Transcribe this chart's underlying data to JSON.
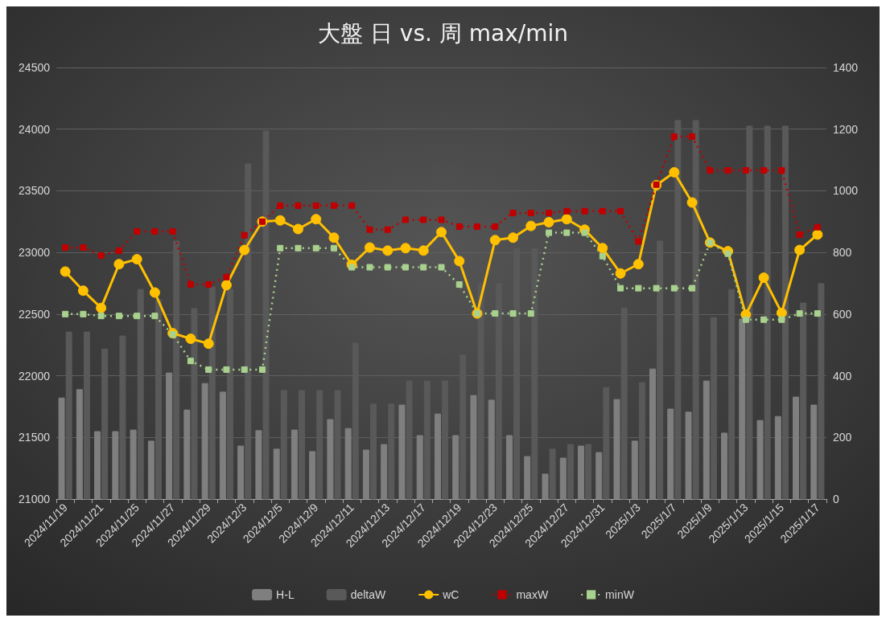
{
  "chart_data": {
    "type": "line",
    "title": "大盤 日 vs. 周 max/min",
    "categories": [
      "2024/11/19",
      null,
      "2024/11/21",
      null,
      "2024/11/25",
      null,
      "2024/11/27",
      null,
      "2024/11/29",
      null,
      "2024/12/3",
      null,
      "2024/12/5",
      null,
      "2024/12/9",
      null,
      "2024/12/11",
      null,
      "2024/12/13",
      null,
      "2024/12/17",
      null,
      "2024/12/19",
      null,
      "2024/12/23",
      null,
      "2024/12/25",
      null,
      "2024/12/27",
      null,
      "2024/12/31",
      null,
      "2025/1/3",
      null,
      "2025/1/7",
      null,
      "2025/1/9",
      null,
      "2025/1/13",
      null,
      "2025/1/15",
      null,
      "2025/1/17"
    ],
    "ylim": [
      21000,
      24500
    ],
    "yticks": [
      21000,
      21500,
      22000,
      22500,
      23000,
      23500,
      24000,
      24500
    ],
    "y2lim": [
      0,
      1400
    ],
    "y2ticks": [
      0,
      200,
      400,
      600,
      800,
      1000,
      1200,
      1400
    ],
    "grid": "y",
    "legend": "bottom",
    "series": [
      {
        "name": "H-L",
        "type": "bar",
        "axis": "y2",
        "color": "#7f7f7f",
        "values": [
          328,
          355,
          219,
          219,
          224,
          188,
          409,
          289,
          375,
          347,
          172,
          222,
          162,
          224,
          154,
          258,
          229,
          159,
          177,
          305,
          206,
          276,
          206,
          336,
          321,
          206,
          138,
          81,
          133,
          172,
          151,
          323,
          188,
          422,
          292,
          282,
          383,
          214,
          584,
          255,
          268,
          331,
          305
        ]
      },
      {
        "name": "deltaW",
        "type": "bar",
        "axis": "y2",
        "color": "#595959",
        "values": [
          542,
          542,
          487,
          529,
          680,
          646,
          837,
          618,
          688,
          680,
          1087,
          1194,
          352,
          352,
          352,
          352,
          506,
          308,
          308,
          383,
          383,
          383,
          467,
          699,
          699,
          813,
          813,
          162,
          177,
          177,
          362,
          620,
          378,
          837,
          1228,
          1228,
          589,
          680,
          1210,
          1210,
          1210,
          636,
          699
        ]
      },
      {
        "name": "wC",
        "color": "#ffc000",
        "marker": "circle",
        "line_style": "solid",
        "values": [
          22845,
          22690,
          22550,
          22905,
          22945,
          22675,
          22345,
          22300,
          22260,
          22735,
          23020,
          23250,
          23260,
          23190,
          23270,
          23120,
          22900,
          23040,
          23015,
          23035,
          23015,
          23165,
          22930,
          22505,
          23100,
          23120,
          23215,
          23245,
          23270,
          23185,
          23035,
          22830,
          22905,
          23545,
          23650,
          23405,
          23080,
          23010,
          22495,
          22795,
          22510,
          23020,
          23145
        ]
      },
      {
        "name": "maxW",
        "color": "#c00000",
        "marker": "square",
        "line_style": "dotted",
        "values": [
          23040,
          23040,
          22975,
          23015,
          23170,
          23170,
          23170,
          22740,
          22740,
          22800,
          23140,
          23250,
          23380,
          23380,
          23380,
          23380,
          23380,
          23185,
          23185,
          23265,
          23265,
          23265,
          23210,
          23210,
          23210,
          23320,
          23320,
          23320,
          23335,
          23335,
          23335,
          23335,
          23090,
          23550,
          23940,
          23940,
          23665,
          23665,
          23665,
          23665,
          23665,
          23145,
          23205
        ]
      },
      {
        "name": "minW",
        "color": "#a9d18e",
        "marker": "square",
        "line_style": "dotted",
        "values": [
          22500,
          22500,
          22485,
          22485,
          22485,
          22485,
          22335,
          22120,
          22050,
          22050,
          22050,
          22050,
          23035,
          23035,
          23035,
          23035,
          22880,
          22880,
          22880,
          22880,
          22880,
          22880,
          22740,
          22505,
          22505,
          22505,
          22505,
          23160,
          23160,
          23160,
          22970,
          22710,
          22710,
          22710,
          22710,
          22710,
          23080,
          22990,
          22455,
          22455,
          22455,
          22505,
          22505
        ]
      }
    ]
  }
}
